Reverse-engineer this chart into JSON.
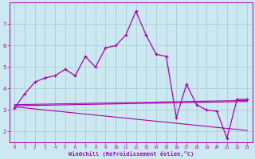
{
  "background_color": "#cce8f0",
  "grid_color": "#aaccd8",
  "line_color": "#aa00aa",
  "xlabel": "Windchill (Refroidissement éolien,°C)",
  "xlabel_color": "#aa00aa",
  "tick_color": "#aa00aa",
  "xmin": -0.5,
  "xmax": 23.5,
  "ymin": 1.5,
  "ymax": 8.0,
  "yticks": [
    2,
    3,
    4,
    5,
    6,
    7
  ],
  "xticks": [
    0,
    1,
    2,
    3,
    4,
    5,
    6,
    7,
    8,
    9,
    10,
    11,
    12,
    13,
    14,
    15,
    16,
    17,
    18,
    19,
    20,
    21,
    22,
    23
  ],
  "series1_x": [
    0,
    1,
    2,
    3,
    4,
    5,
    6,
    7,
    8,
    9,
    10,
    11,
    12,
    13,
    14,
    15,
    16,
    17,
    18,
    19,
    20,
    21,
    22,
    23
  ],
  "series1_y": [
    3.1,
    3.75,
    4.3,
    4.5,
    4.6,
    4.9,
    4.6,
    5.5,
    5.0,
    5.9,
    6.0,
    6.5,
    7.6,
    6.5,
    5.6,
    5.5,
    2.65,
    4.2,
    3.25,
    3.0,
    2.95,
    1.7,
    3.5,
    3.5
  ],
  "series2_x": [
    0,
    23
  ],
  "series2_y": [
    3.25,
    3.45
  ],
  "series3_x": [
    0,
    23
  ],
  "series3_y": [
    3.2,
    3.4
  ],
  "series4_x": [
    0,
    23
  ],
  "series4_y": [
    3.15,
    2.05
  ]
}
